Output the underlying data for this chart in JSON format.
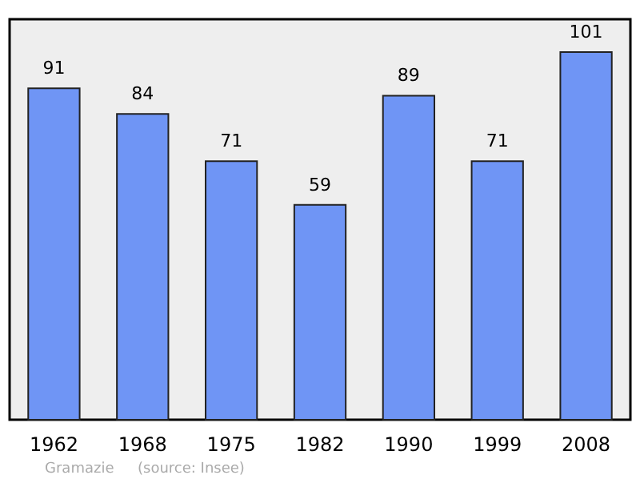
{
  "chart_data": {
    "type": "bar",
    "categories": [
      "1962",
      "1968",
      "1975",
      "1982",
      "1990",
      "1999",
      "2008"
    ],
    "values": [
      91,
      84,
      71,
      59,
      89,
      71,
      101
    ],
    "color": "#6f95f5",
    "data_labels": true,
    "tick_labels": "x",
    "annotations": [
      "Gramazie",
      "(source: Insee)"
    ]
  }
}
